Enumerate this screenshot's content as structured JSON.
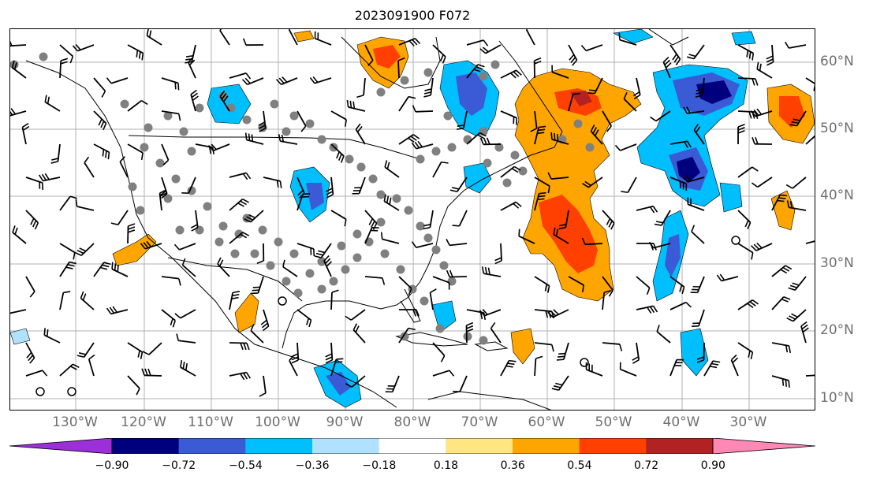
{
  "title": "2023091900 F072",
  "lon_labels": [
    "130°W",
    "120°W",
    "110°W",
    "100°W",
    "90°W",
    "80°W",
    "70°W",
    "60°W",
    "50°W",
    "40°W",
    "30°W"
  ],
  "lat_labels": [
    "60°N",
    "50°N",
    "40°N",
    "30°N",
    "20°N",
    "10°N"
  ],
  "colorbar": {
    "ticks": [
      "−0.90",
      "−0.72",
      "−0.54",
      "−0.36",
      "−0.18",
      "0.18",
      "0.36",
      "0.54",
      "0.72",
      "0.90"
    ],
    "colors": {
      "below": "#9b30d9",
      "b1": "#00007f",
      "b2": "#3b5bd6",
      "b3": "#00bfff",
      "b4": "#b0e2ff",
      "zero": "#ffffff",
      "r1": "#ffe680",
      "r2": "#ffa500",
      "r3": "#ff4000",
      "r4": "#b22222",
      "above": "#ff88b5"
    }
  },
  "map_colors": {
    "gridline": "#b0b0b0",
    "coast": "#000000",
    "station": "#808080",
    "barb": "#000000"
  }
}
